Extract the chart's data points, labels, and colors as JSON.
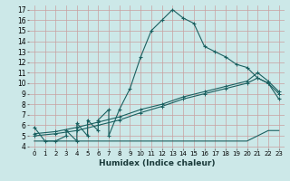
{
  "xlabel": "Humidex (Indice chaleur)",
  "background_color": "#cce8e8",
  "grid_color": "#c8a0a0",
  "line_color": "#1a6060",
  "xlim": [
    -0.5,
    23.5
  ],
  "ylim": [
    3.8,
    17.4
  ],
  "xticks": [
    0,
    1,
    2,
    3,
    4,
    5,
    6,
    7,
    8,
    9,
    10,
    11,
    12,
    13,
    14,
    15,
    16,
    17,
    18,
    19,
    20,
    21,
    22,
    23
  ],
  "yticks": [
    4,
    5,
    6,
    7,
    8,
    9,
    10,
    11,
    12,
    13,
    14,
    15,
    16,
    17
  ],
  "curve1_x": [
    0,
    1,
    2,
    3,
    3,
    4,
    4,
    5,
    5,
    6,
    6,
    7,
    7,
    8,
    9,
    10,
    11,
    12,
    13,
    14,
    15,
    16,
    17,
    18,
    19,
    20,
    21,
    22,
    23
  ],
  "curve1_y": [
    5.8,
    4.5,
    4.5,
    5.0,
    5.5,
    4.5,
    6.2,
    5.0,
    6.5,
    5.5,
    6.5,
    7.5,
    5.0,
    7.5,
    9.5,
    12.5,
    15.0,
    16.0,
    17.0,
    16.2,
    15.7,
    13.5,
    13.0,
    12.5,
    11.8,
    11.5,
    10.5,
    10.0,
    8.5
  ],
  "curve2_x": [
    0,
    1,
    2,
    3,
    4,
    5,
    6,
    7,
    8,
    9,
    10,
    11,
    12,
    13,
    14,
    15,
    16,
    17,
    18,
    19,
    20,
    21,
    22,
    23
  ],
  "curve2_y": [
    4.5,
    4.5,
    4.5,
    4.5,
    4.5,
    4.5,
    4.5,
    4.5,
    4.5,
    4.5,
    4.5,
    4.5,
    4.5,
    4.5,
    4.5,
    4.5,
    4.5,
    4.5,
    4.5,
    4.5,
    4.5,
    5.0,
    5.5,
    5.5
  ],
  "curve3_x": [
    0,
    2,
    4,
    6,
    8,
    10,
    12,
    14,
    16,
    18,
    20,
    21,
    22,
    23
  ],
  "curve3_y": [
    5.0,
    5.2,
    5.5,
    6.0,
    6.5,
    7.2,
    7.8,
    8.5,
    9.0,
    9.5,
    10.0,
    10.5,
    10.0,
    9.0
  ],
  "curve3b_x": [
    0,
    2,
    4,
    6,
    8,
    10,
    12,
    14,
    16,
    18,
    20,
    21,
    22,
    23
  ],
  "curve3b_y": [
    5.2,
    5.4,
    5.8,
    6.3,
    6.8,
    7.5,
    8.0,
    8.7,
    9.2,
    9.7,
    10.2,
    11.0,
    10.2,
    9.2
  ]
}
